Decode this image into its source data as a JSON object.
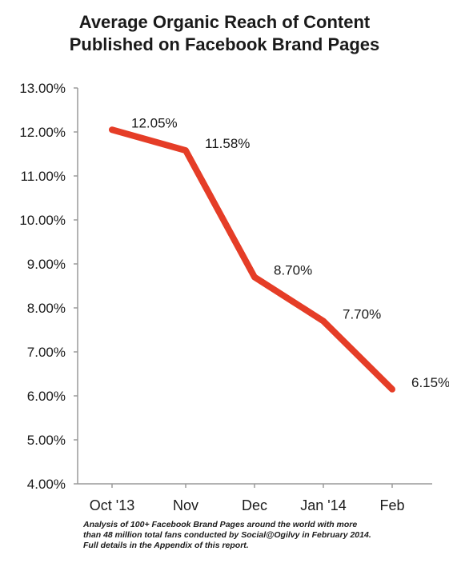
{
  "chart_data": {
    "type": "line",
    "title": [
      "Average Organic Reach of Content",
      "Published on Facebook Brand Pages"
    ],
    "xlabel": "",
    "ylabel": "",
    "categories": [
      "Oct '13",
      "Nov",
      "Dec",
      "Jan '14",
      "Feb"
    ],
    "series": [
      {
        "values": [
          12.05,
          11.58,
          8.7,
          7.7,
          6.15
        ],
        "data_labels": [
          "12.05%",
          "11.58%",
          "8.70%",
          "7.70%",
          "6.15%"
        ],
        "color": "#e53d27"
      }
    ],
    "ylim": [
      4,
      13
    ],
    "y_ticks": [
      4,
      5,
      6,
      7,
      8,
      9,
      10,
      11,
      12,
      13
    ],
    "y_tick_labels": [
      "4.00%",
      "5.00%",
      "6.00%",
      "7.00%",
      "8.00%",
      "9.00%",
      "10.00%",
      "11.00%",
      "12.00%",
      "13.00%"
    ],
    "grid": false,
    "legend": "none",
    "axis_color": "#9a9a9a"
  },
  "footnote": [
    "Analysis of 100+ Facebook Brand Pages around the world with more",
    "than 48 million total fans conducted by Social@Ogilvy in February 2014.",
    "Full details in the Appendix of this report."
  ]
}
